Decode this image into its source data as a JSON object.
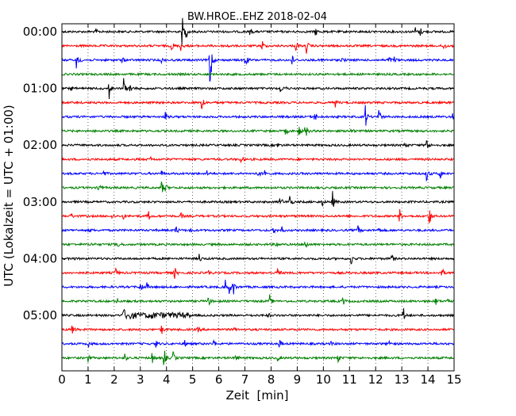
{
  "chart_data": {
    "type": "line",
    "title": "BW.HROE..EHZ 2018-02-04",
    "xlabel": "Zeit  [min]",
    "ylabel": "UTC (Lokalzeit = UTC + 01:00)",
    "xlim": [
      0,
      15
    ],
    "x_ticks": [
      "0",
      "1",
      "2",
      "3",
      "4",
      "5",
      "6",
      "7",
      "8",
      "9",
      "10",
      "11",
      "12",
      "13",
      "14",
      "15"
    ],
    "y_tick_labels": [
      "00:00",
      "01:00",
      "02:00",
      "03:00",
      "04:00",
      "05:00"
    ],
    "trace_interval_min": 15,
    "trace_colors": [
      "#000000",
      "#ff0000",
      "#0000ff",
      "#008000"
    ],
    "grid": "vertical dotted",
    "series": [
      {
        "start": "00:00",
        "events": [
          [
            1.3,
            3
          ],
          [
            4.6,
            22
          ],
          [
            4.75,
            8
          ],
          [
            7.2,
            6
          ],
          [
            9.7,
            6
          ],
          [
            13.5,
            8
          ],
          [
            13.7,
            7
          ]
        ]
      },
      {
        "start": "00:15",
        "events": [
          [
            4.2,
            8
          ],
          [
            4.55,
            7
          ],
          [
            6.3,
            5
          ],
          [
            7.65,
            9
          ],
          [
            8.95,
            9
          ],
          [
            9.35,
            10
          ],
          [
            14.6,
            8
          ]
        ]
      },
      {
        "start": "00:30",
        "events": [
          [
            0.55,
            10
          ],
          [
            0.65,
            6
          ],
          [
            2.3,
            4
          ],
          [
            3.8,
            3
          ],
          [
            5.65,
            62
          ],
          [
            7.0,
            14
          ],
          [
            8.8,
            7
          ],
          [
            9.95,
            4
          ],
          [
            10.7,
            5
          ],
          [
            12.5,
            6
          ],
          [
            12.7,
            5
          ]
        ]
      },
      {
        "start": "00:45",
        "events": []
      },
      {
        "start": "01:00",
        "events": [
          [
            0.35,
            3
          ],
          [
            1.8,
            14
          ],
          [
            2.35,
            16
          ],
          [
            2.6,
            10
          ],
          [
            8.35,
            5
          ],
          [
            8.5,
            4
          ]
        ]
      },
      {
        "start": "01:15",
        "events": [
          [
            5.35,
            16
          ],
          [
            10.45,
            6
          ]
        ]
      },
      {
        "start": "01:30",
        "events": [
          [
            3.95,
            7
          ],
          [
            9.65,
            10
          ],
          [
            11.6,
            18
          ],
          [
            12.1,
            17
          ],
          [
            14.95,
            6
          ]
        ]
      },
      {
        "start": "01:45",
        "events": [
          [
            8.55,
            6
          ],
          [
            9.05,
            9
          ],
          [
            9.3,
            16
          ],
          [
            11.05,
            6
          ]
        ]
      },
      {
        "start": "02:00",
        "events": [
          [
            8.25,
            3
          ],
          [
            13.1,
            6
          ],
          [
            13.95,
            13
          ]
        ]
      },
      {
        "start": "02:15",
        "events": [
          [
            3.4,
            3
          ],
          [
            6.85,
            6
          ]
        ]
      },
      {
        "start": "02:30",
        "events": [
          [
            1.6,
            4
          ],
          [
            3.8,
            3
          ],
          [
            5.55,
            3
          ],
          [
            7.5,
            7
          ],
          [
            7.75,
            9
          ],
          [
            13.95,
            13
          ],
          [
            14.45,
            10
          ]
        ]
      },
      {
        "start": "02:45",
        "events": [
          [
            1.4,
            11
          ],
          [
            3.8,
            11
          ],
          [
            3.95,
            7
          ]
        ]
      },
      {
        "start": "03:00",
        "events": [
          [
            8.35,
            10
          ],
          [
            8.7,
            13
          ],
          [
            9.95,
            5
          ],
          [
            10.35,
            13
          ]
        ]
      },
      {
        "start": "03:15",
        "events": [
          [
            0.35,
            4
          ],
          [
            1.9,
            3
          ],
          [
            2.35,
            4
          ],
          [
            3.3,
            8
          ],
          [
            4.55,
            5
          ],
          [
            12.9,
            12
          ],
          [
            14.05,
            15
          ]
        ]
      },
      {
        "start": "03:30",
        "events": [
          [
            1.05,
            3
          ],
          [
            4.35,
            8
          ],
          [
            4.9,
            4
          ],
          [
            8.1,
            5
          ],
          [
            8.4,
            5
          ],
          [
            11.3,
            9
          ],
          [
            12.1,
            5
          ]
        ]
      },
      {
        "start": "03:45",
        "events": [
          [
            1.15,
            4
          ],
          [
            2.15,
            8
          ],
          [
            8.2,
            4
          ],
          [
            9.3,
            12
          ]
        ]
      },
      {
        "start": "04:00",
        "events": [
          [
            0.4,
            3
          ],
          [
            5.25,
            6
          ],
          [
            11.05,
            10
          ],
          [
            12.6,
            7
          ]
        ]
      },
      {
        "start": "04:15",
        "events": [
          [
            2.05,
            6
          ],
          [
            4.3,
            10
          ],
          [
            5.6,
            3
          ],
          [
            8.25,
            9
          ],
          [
            14.5,
            14
          ]
        ]
      },
      {
        "start": "04:30",
        "events": [
          [
            3.0,
            12
          ],
          [
            3.25,
            5
          ],
          [
            6.25,
            10
          ],
          [
            6.55,
            13
          ],
          [
            6.4,
            9
          ]
        ]
      },
      {
        "start": "04:45",
        "events": [
          [
            2.1,
            4
          ],
          [
            5.6,
            8
          ],
          [
            7.95,
            8
          ],
          [
            10.75,
            7
          ],
          [
            14.3,
            6
          ],
          [
            14.75,
            7
          ]
        ]
      },
      {
        "start": "05:00",
        "events": [
          [
            2.35,
            8
          ],
          [
            2.6,
            4
          ],
          [
            3.4,
            5
          ],
          [
            7.9,
            3
          ],
          [
            13.05,
            13
          ]
        ]
      },
      {
        "start": "05:15",
        "events": [
          [
            0.4,
            10
          ],
          [
            3.8,
            9
          ],
          [
            5.2,
            4
          ],
          [
            6.6,
            3
          ]
        ]
      },
      {
        "start": "05:30",
        "events": [
          [
            1.0,
            5
          ],
          [
            3.6,
            5
          ],
          [
            4.7,
            4
          ],
          [
            5.8,
            6
          ],
          [
            8.3,
            9
          ],
          [
            10.3,
            3
          ],
          [
            12.5,
            5
          ]
        ]
      },
      {
        "start": "05:45",
        "events": [
          [
            1.0,
            5
          ],
          [
            2.4,
            6
          ],
          [
            3.45,
            8
          ],
          [
            3.9,
            15
          ],
          [
            4.25,
            9
          ],
          [
            6.65,
            7
          ],
          [
            8.25,
            4
          ],
          [
            10.55,
            8
          ]
        ]
      }
    ]
  }
}
